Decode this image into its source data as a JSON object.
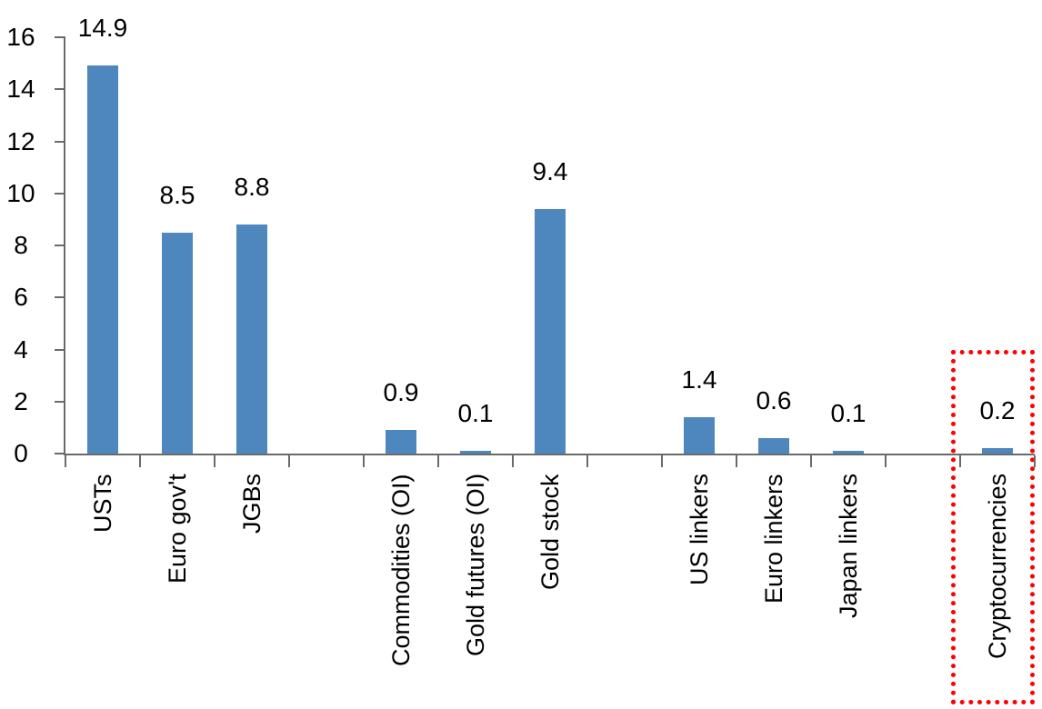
{
  "chart_data": {
    "type": "bar",
    "title": "",
    "categories": [
      "USTs",
      "Euro gov't",
      "JGBs",
      "Commodities (OI)",
      "Gold futures (OI)",
      "Gold stock",
      "US linkers",
      "Euro linkers",
      "Japan linkers",
      "Cryptocurrencies"
    ],
    "values": [
      14.9,
      8.5,
      8.8,
      0.9,
      0.1,
      9.4,
      1.4,
      0.6,
      0.1,
      0.2
    ],
    "data_labels": [
      "14.9",
      "8.5",
      "8.8",
      "0.9",
      "0.1",
      "9.4",
      "1.4",
      "0.6",
      "0.1",
      "0.2"
    ],
    "slots": [
      0,
      1,
      2,
      4,
      5,
      6,
      8,
      9,
      10,
      12
    ],
    "total_slots": 13,
    "grouping_note": "bars grouped 3-3-3-1 with one empty slot between groups",
    "y_axis": {
      "min": 0,
      "max": 16,
      "tick_step": 2,
      "tick_labels": [
        "0",
        "2",
        "4",
        "6",
        "8",
        "10",
        "12",
        "14",
        "16"
      ]
    },
    "xlabel": "",
    "ylabel": "",
    "legend": null,
    "grid": false,
    "colors": {
      "bar": "#4e87bd",
      "axis": "#6a6a6a",
      "text": "#000000",
      "highlight_box": "#ff0000"
    },
    "highlight": {
      "category": "Cryptocurrencies",
      "value_label": "0.2",
      "box_style": "dotted-red-rectangle"
    }
  }
}
